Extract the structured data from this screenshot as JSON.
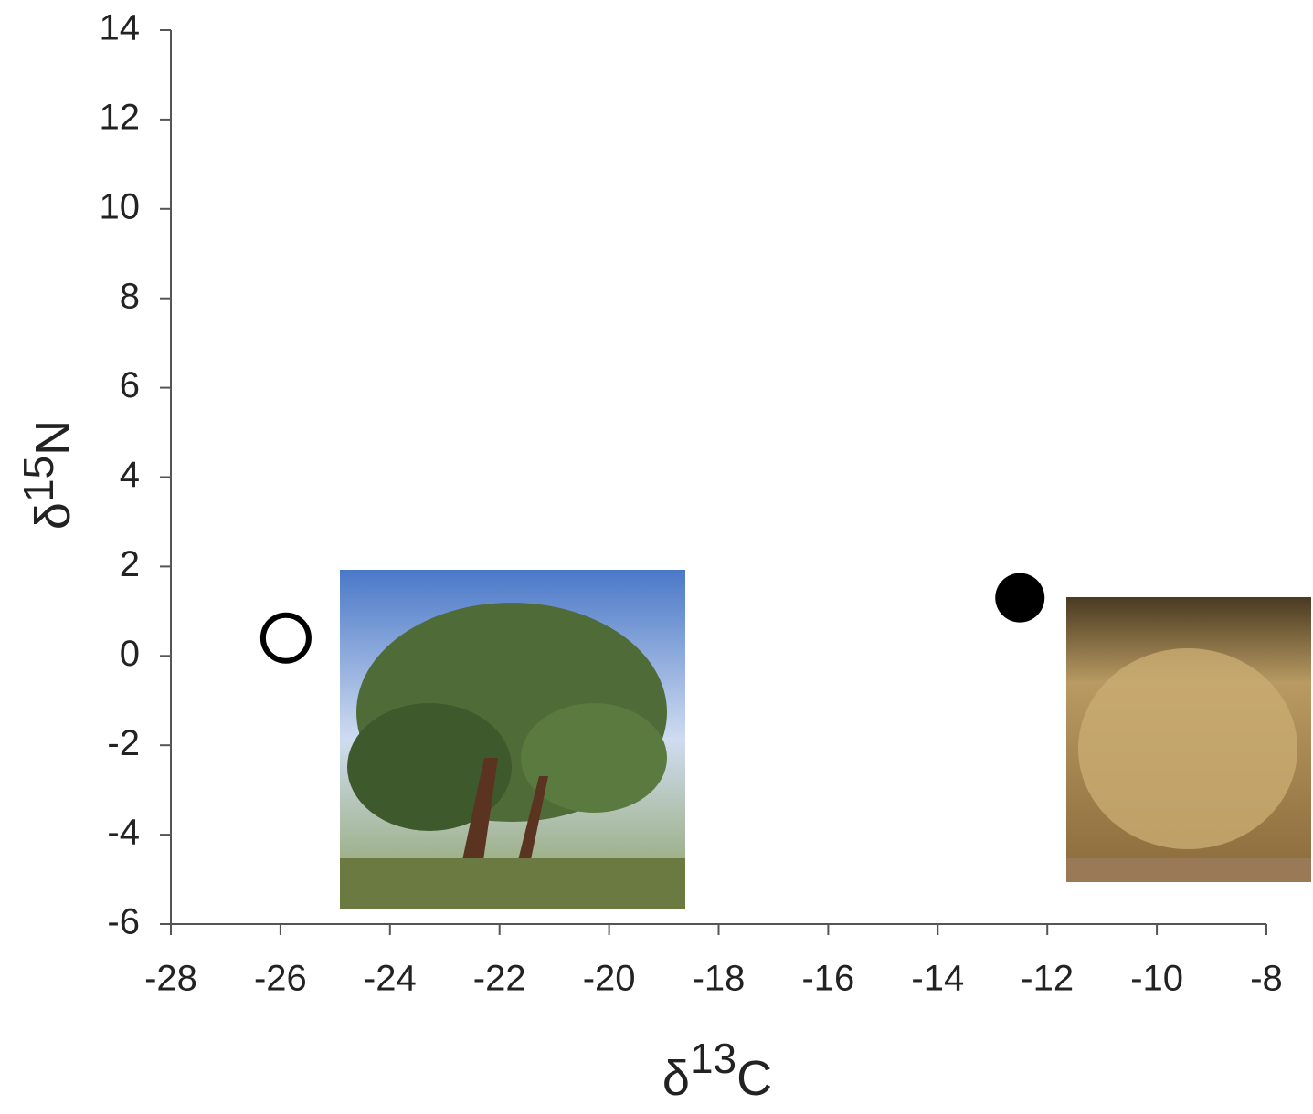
{
  "chart_data": {
    "type": "scatter",
    "xlabel": {
      "symbol": "δ",
      "isotope": "13",
      "element": "C"
    },
    "ylabel": {
      "symbol": "δ",
      "isotope": "15",
      "element": "N"
    },
    "xlim": [
      -28,
      -8
    ],
    "xticks": [
      -28,
      -26,
      -24,
      -22,
      -20,
      -18,
      -16,
      -14,
      -12,
      -10,
      -8
    ],
    "ylim": [
      -6,
      14
    ],
    "yticks": [
      -6,
      -4,
      -2,
      0,
      2,
      4,
      6,
      8,
      10,
      12,
      14
    ],
    "grid": false,
    "series": [
      {
        "color": "#000000",
        "marker": "open",
        "x": [
          -25.9
        ],
        "values": [
          0.4
        ]
      },
      {
        "color": "#000000",
        "marker": "filled",
        "x": [
          -12.5
        ],
        "values": [
          1.3
        ]
      }
    ]
  }
}
